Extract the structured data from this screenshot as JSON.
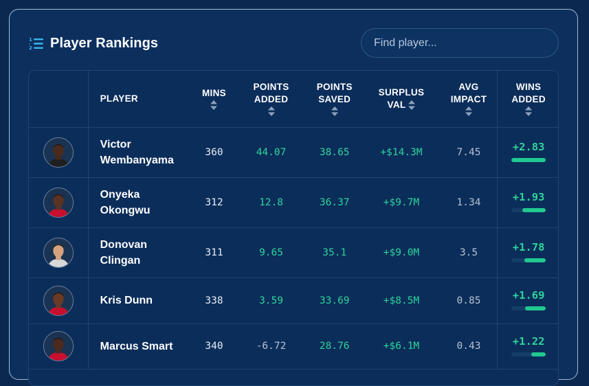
{
  "header": {
    "title": "Player Rankings",
    "search_placeholder": "Find player..."
  },
  "table": {
    "columns": [
      {
        "key": "player",
        "label": "PLAYER",
        "sortable": false
      },
      {
        "key": "mins",
        "label": "MINS",
        "sortable": true
      },
      {
        "key": "points_added",
        "label": "POINTS ADDED",
        "sortable": true
      },
      {
        "key": "points_saved",
        "label": "POINTS SAVED",
        "sortable": true
      },
      {
        "key": "surplus_val",
        "label": "SURPLUS VAL",
        "sortable": true
      },
      {
        "key": "avg_impact",
        "label": "AVG IMPACT",
        "sortable": true
      },
      {
        "key": "wins_added",
        "label": "WINS ADDED",
        "sortable": true
      }
    ],
    "rows": [
      {
        "name_line1": "Victor",
        "name_line2": "Wembanyama",
        "mins": "360",
        "points_added": "44.07",
        "points_saved": "38.65",
        "surplus_val": "+$14.3M",
        "avg_impact": "7.45",
        "wins_added": "+2.83",
        "wins_fraction": 1.0
      },
      {
        "name_line1": "Onyeka",
        "name_line2": "Okongwu",
        "mins": "312",
        "points_added": "12.8",
        "points_saved": "36.37",
        "surplus_val": "+$9.7M",
        "avg_impact": "1.34",
        "wins_added": "+1.93",
        "wins_fraction": 0.68
      },
      {
        "name_line1": "Donovan",
        "name_line2": "Clingan",
        "mins": "311",
        "points_added": "9.65",
        "points_saved": "35.1",
        "surplus_val": "+$9.0M",
        "avg_impact": "3.5",
        "wins_added": "+1.78",
        "wins_fraction": 0.63
      },
      {
        "name_line1": "Kris Dunn",
        "name_line2": "",
        "mins": "338",
        "points_added": "3.59",
        "points_saved": "33.69",
        "surplus_val": "+$8.5M",
        "avg_impact": "0.85",
        "wins_added": "+1.69",
        "wins_fraction": 0.6
      },
      {
        "name_line1": "Marcus Smart",
        "name_line2": "",
        "mins": "340",
        "points_added": "-6.72",
        "points_saved": "28.76",
        "surplus_val": "+$6.1M",
        "avg_impact": "0.43",
        "wins_added": "+1.22",
        "wins_fraction": 0.43
      }
    ]
  },
  "colors": {
    "background": "#0b2850",
    "card": "#0c2f5e",
    "positive": "#2fd39a",
    "accent_icon": "#3ab8e8"
  },
  "icons": {
    "title_icon": "numbered-list-icon",
    "sort_icon": "sort-arrows-icon",
    "avatar": "player-headshot"
  }
}
